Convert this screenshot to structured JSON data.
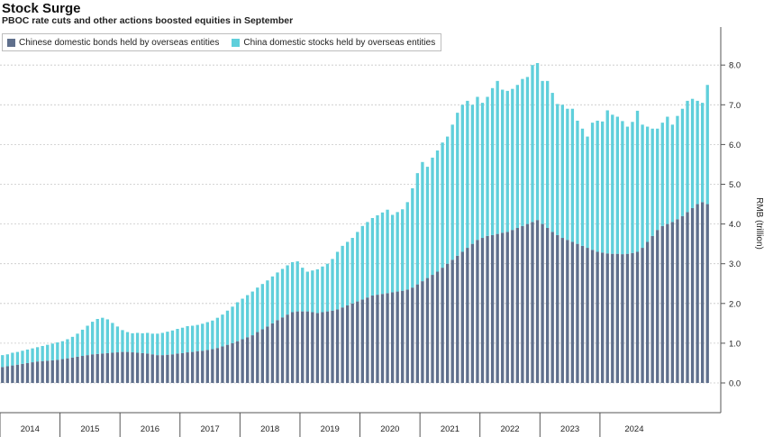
{
  "chart_data": {
    "type": "bar",
    "stacked": true,
    "title": "Stock Surge",
    "subtitle": "PBOC rate cuts and other actions boosted equities in September",
    "ylabel": "RMB (trillion)",
    "xlabel": "",
    "ylim": [
      0,
      8.5
    ],
    "yticks": [
      "0.0",
      "1.0",
      "2.0",
      "3.0",
      "4.0",
      "5.0",
      "6.0",
      "7.0",
      "8.0"
    ],
    "grid": true,
    "legend_placement": "top-left",
    "year_labels": [
      "2014",
      "2015",
      "2016",
      "2017",
      "2018",
      "2019",
      "2020",
      "2021",
      "2022",
      "2023",
      "2024"
    ],
    "x_start": "2014-01",
    "x_end": "2024-09",
    "series": [
      {
        "name": "Chinese domestic bonds held by overseas entities",
        "color": "#5f6f8c",
        "values": [
          0.4,
          0.42,
          0.44,
          0.46,
          0.48,
          0.5,
          0.52,
          0.54,
          0.55,
          0.56,
          0.57,
          0.58,
          0.6,
          0.62,
          0.64,
          0.66,
          0.68,
          0.7,
          0.72,
          0.73,
          0.74,
          0.75,
          0.76,
          0.77,
          0.78,
          0.78,
          0.77,
          0.76,
          0.75,
          0.74,
          0.72,
          0.7,
          0.7,
          0.71,
          0.72,
          0.74,
          0.75,
          0.77,
          0.78,
          0.8,
          0.81,
          0.83,
          0.85,
          0.88,
          0.92,
          0.96,
          1.0,
          1.05,
          1.1,
          1.15,
          1.2,
          1.28,
          1.35,
          1.42,
          1.5,
          1.58,
          1.65,
          1.72,
          1.78,
          1.8,
          1.8,
          1.8,
          1.78,
          1.76,
          1.78,
          1.8,
          1.82,
          1.85,
          1.9,
          1.95,
          2.0,
          2.05,
          2.1,
          2.15,
          2.2,
          2.22,
          2.24,
          2.26,
          2.28,
          2.3,
          2.32,
          2.35,
          2.4,
          2.48,
          2.56,
          2.64,
          2.72,
          2.8,
          2.9,
          3.0,
          3.1,
          3.2,
          3.3,
          3.4,
          3.5,
          3.6,
          3.65,
          3.7,
          3.72,
          3.75,
          3.78,
          3.8,
          3.85,
          3.9,
          3.95,
          4.0,
          4.05,
          4.1,
          4.0,
          3.9,
          3.8,
          3.72,
          3.65,
          3.6,
          3.55,
          3.5,
          3.45,
          3.4,
          3.35,
          3.3,
          3.28,
          3.26,
          3.25,
          3.25,
          3.24,
          3.25,
          3.27,
          3.3,
          3.4,
          3.55,
          3.7,
          3.85,
          3.95,
          4.0,
          4.05,
          4.12,
          4.2,
          4.3,
          4.4,
          4.5,
          4.55,
          4.5
        ]
      },
      {
        "name": "China domestic stocks held by overseas entities",
        "color": "#5fcfdb",
        "values": [
          0.3,
          0.3,
          0.32,
          0.32,
          0.33,
          0.34,
          0.35,
          0.36,
          0.38,
          0.4,
          0.42,
          0.44,
          0.45,
          0.48,
          0.52,
          0.58,
          0.66,
          0.74,
          0.82,
          0.88,
          0.9,
          0.85,
          0.75,
          0.65,
          0.55,
          0.5,
          0.48,
          0.5,
          0.5,
          0.52,
          0.52,
          0.54,
          0.56,
          0.58,
          0.6,
          0.62,
          0.64,
          0.66,
          0.66,
          0.66,
          0.68,
          0.7,
          0.72,
          0.76,
          0.8,
          0.86,
          0.92,
          0.98,
          1.02,
          1.06,
          1.1,
          1.12,
          1.14,
          1.16,
          1.18,
          1.2,
          1.22,
          1.24,
          1.26,
          1.26,
          1.1,
          1.0,
          1.05,
          1.1,
          1.15,
          1.2,
          1.3,
          1.45,
          1.55,
          1.6,
          1.65,
          1.75,
          1.85,
          1.9,
          1.95,
          2.0,
          2.05,
          2.1,
          1.95,
          2.0,
          2.05,
          2.2,
          2.5,
          2.8,
          3.0,
          2.8,
          2.95,
          3.05,
          3.15,
          3.2,
          3.4,
          3.6,
          3.7,
          3.7,
          3.5,
          3.6,
          3.4,
          3.5,
          3.7,
          3.85,
          3.6,
          3.55,
          3.55,
          3.6,
          3.7,
          3.7,
          3.95,
          3.95,
          3.6,
          3.7,
          3.5,
          3.3,
          3.35,
          3.3,
          3.35,
          3.1,
          2.95,
          2.8,
          3.2,
          3.3,
          3.3,
          3.6,
          3.5,
          3.45,
          3.35,
          3.2,
          3.3,
          3.55,
          3.1,
          2.9,
          2.7,
          2.55,
          2.6,
          2.7,
          2.45,
          2.6,
          2.7,
          2.8,
          2.75,
          2.6,
          2.5,
          3.0
        ]
      }
    ]
  }
}
